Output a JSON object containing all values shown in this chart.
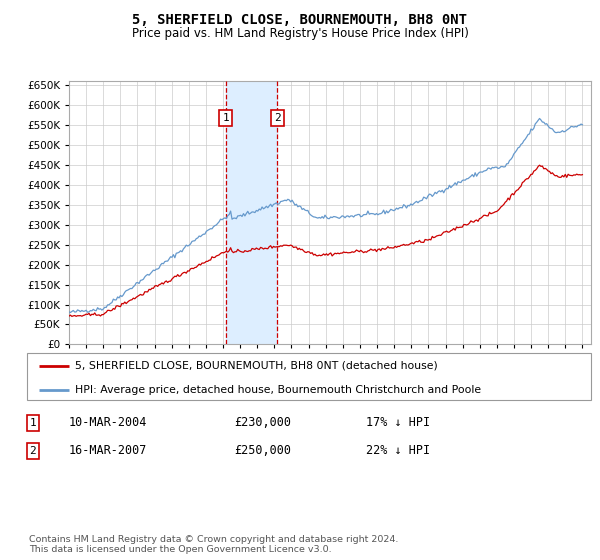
{
  "title": "5, SHERFIELD CLOSE, BOURNEMOUTH, BH8 0NT",
  "subtitle": "Price paid vs. HM Land Registry's House Price Index (HPI)",
  "legend_line1": "5, SHERFIELD CLOSE, BOURNEMOUTH, BH8 0NT (detached house)",
  "legend_line2": "HPI: Average price, detached house, Bournemouth Christchurch and Poole",
  "footnote": "Contains HM Land Registry data © Crown copyright and database right 2024.\nThis data is licensed under the Open Government Licence v3.0.",
  "transaction1_date": "10-MAR-2004",
  "transaction1_price": "£230,000",
  "transaction1_pct": "17% ↓ HPI",
  "transaction2_date": "16-MAR-2007",
  "transaction2_price": "£250,000",
  "transaction2_pct": "22% ↓ HPI",
  "red_color": "#cc0000",
  "blue_color": "#6699cc",
  "shade_color": "#ddeeff",
  "marker_box_color": "#cc0000",
  "ylim": [
    0,
    660000
  ],
  "yticks": [
    0,
    50000,
    100000,
    150000,
    200000,
    250000,
    300000,
    350000,
    400000,
    450000,
    500000,
    550000,
    600000,
    650000
  ],
  "background_color": "#ffffff",
  "grid_color": "#cccccc",
  "t1_year": 2004.167,
  "t2_year": 2007.167
}
